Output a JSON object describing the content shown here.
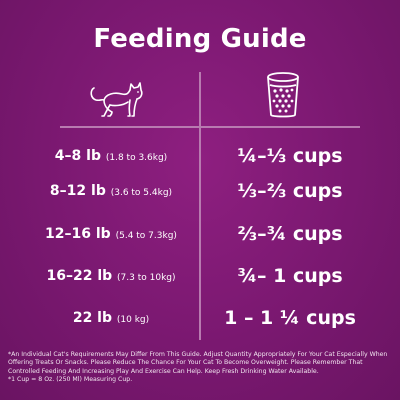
{
  "title": "Feeding Guide",
  "icons": {
    "left": "cat-icon",
    "right": "measuring-cup-icon"
  },
  "rows": [
    {
      "weight": "4–8 lb",
      "metric": "(1.8 to 3.6kg)",
      "amount": "¼–⅓ cups"
    },
    {
      "weight": "8–12 lb",
      "metric": "(3.6 to 5.4kg)",
      "amount": "⅓–⅔ cups"
    },
    {
      "weight": "12–16 lb",
      "metric": "(5.4 to 7.3kg)",
      "amount": "⅔–¾ cups"
    },
    {
      "weight": "16–22 lb",
      "metric": "(7.3 to 10kg)",
      "amount": "¾– 1 cups"
    },
    {
      "weight": "22 lb",
      "metric": "(10 kg)",
      "amount": "1 – 1 ¼ cups"
    }
  ],
  "footnote": {
    "line1": "*An Individual Cat's Requirements May Differ From This Guide. Adjust Quantity Appropriately For Your Cat Especially When Offering Treats Or Snacks. Please Reduce The Chance For Your Cat To Become Overweight. Please Remember That Controlled Feeding And Increasing Play And Exercise Can Help. Keep Fresh Drinking Water Available.",
    "line2": "*1 Cup = 8 Oz. (250 Ml) Measuring Cup."
  },
  "colors": {
    "background": "#7a1870",
    "divider": "#b87bb0",
    "text": "#ffffff"
  }
}
